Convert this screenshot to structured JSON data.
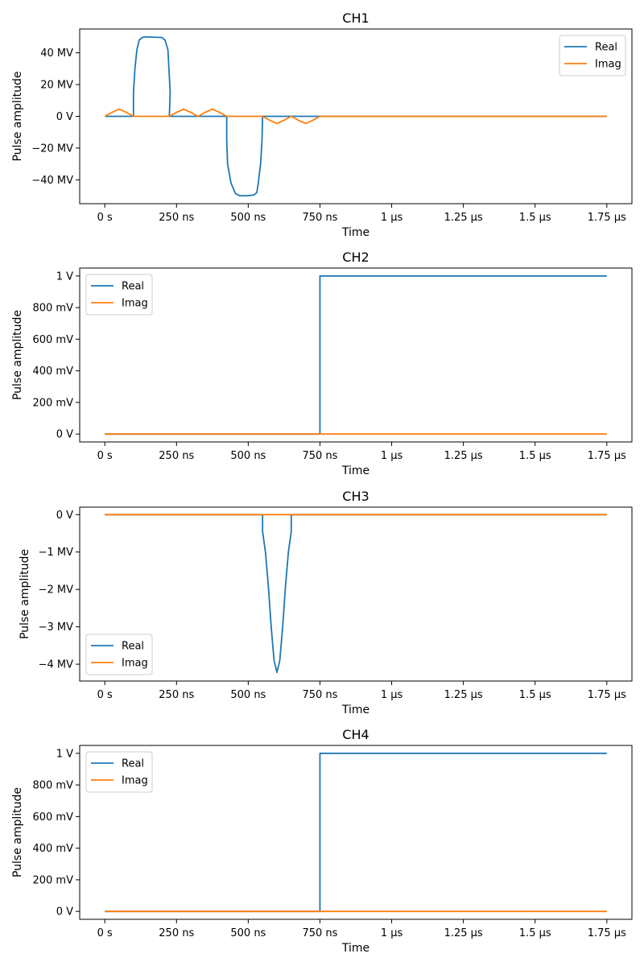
{
  "chart_data": [
    {
      "type": "line",
      "title": "CH1",
      "xlabel": "Time",
      "ylabel": "Pulse amplitude",
      "xlim": [
        -0.0875,
        1.8375
      ],
      "ylim": [
        -55,
        55
      ],
      "x_ticks": [
        0,
        0.25,
        0.5,
        0.75,
        1.0,
        1.25,
        1.5,
        1.75
      ],
      "x_tick_labels": [
        "0 s",
        "250 ns",
        "500 ns",
        "750 ns",
        "1 µs",
        "1.25 µs",
        "1.5 µs",
        "1.75 µs"
      ],
      "y_ticks": [
        -40,
        -20,
        0,
        20,
        40
      ],
      "y_tick_labels": [
        "−40 MV",
        "−20 MV",
        "0 V",
        "20 MV",
        "40 MV"
      ],
      "legend": {
        "position": "upper-right",
        "entries": [
          "Real",
          "Imag"
        ]
      },
      "grid": false,
      "series": [
        {
          "name": "Real",
          "color": "#1f77b4",
          "x": [
            0,
            0.1,
            0.1,
            0.105,
            0.112,
            0.12,
            0.13,
            0.14,
            0.15,
            0.2,
            0.21,
            0.22,
            0.228,
            0.225,
            0.225,
            0.42,
            0.425,
            0.425,
            0.428,
            0.44,
            0.455,
            0.47,
            0.5,
            0.52,
            0.53,
            0.535,
            0.543,
            0.548,
            0.55,
            0.55,
            0.75,
            1.75
          ],
          "y": [
            0,
            0,
            15,
            30,
            42,
            48,
            49.6,
            50,
            50,
            49.6,
            48,
            42,
            15,
            0,
            0,
            0,
            0,
            -15,
            -30,
            -42,
            -48.5,
            -50,
            -50,
            -49.5,
            -48,
            -42,
            -30,
            -15,
            0,
            0,
            0,
            0
          ]
        },
        {
          "name": "Imag",
          "color": "#ff7f0e",
          "x": [
            0,
            0.025,
            0.05,
            0.075,
            0.1,
            0.225,
            0.25,
            0.275,
            0.3,
            0.325,
            0.35,
            0.375,
            0.4,
            0.425,
            0.55,
            0.575,
            0.6,
            0.625,
            0.65,
            0.675,
            0.7,
            0.725,
            0.75,
            1.75
          ],
          "y": [
            0,
            2.5,
            4.5,
            2.5,
            0,
            0,
            2.5,
            4.5,
            2.5,
            0,
            2.5,
            4.5,
            2.5,
            0,
            0,
            -2.5,
            -4.5,
            -2.5,
            0,
            -2.5,
            -4.5,
            -2.5,
            0,
            0
          ]
        }
      ]
    },
    {
      "type": "line",
      "title": "CH2",
      "xlabel": "Time",
      "ylabel": "Pulse amplitude",
      "xlim": [
        -0.0875,
        1.8375
      ],
      "ylim": [
        -0.05,
        1.05
      ],
      "x_ticks": [
        0,
        0.25,
        0.5,
        0.75,
        1.0,
        1.25,
        1.5,
        1.75
      ],
      "x_tick_labels": [
        "0 s",
        "250 ns",
        "500 ns",
        "750 ns",
        "1 µs",
        "1.25 µs",
        "1.5 µs",
        "1.75 µs"
      ],
      "y_ticks": [
        0,
        0.2,
        0.4,
        0.6,
        0.8,
        1.0
      ],
      "y_tick_labels": [
        "0 V",
        "200 mV",
        "400 mV",
        "600 mV",
        "800 mV",
        "1 V"
      ],
      "legend": {
        "position": "upper-left",
        "entries": [
          "Real",
          "Imag"
        ]
      },
      "grid": false,
      "series": [
        {
          "name": "Real",
          "color": "#1f77b4",
          "x": [
            0,
            0.75,
            0.75,
            1.75
          ],
          "y": [
            0,
            0,
            1,
            1
          ]
        },
        {
          "name": "Imag",
          "color": "#ff7f0e",
          "x": [
            0,
            1.75
          ],
          "y": [
            0,
            0
          ]
        }
      ]
    },
    {
      "type": "line",
      "title": "CH3",
      "xlabel": "Time",
      "ylabel": "Pulse amplitude",
      "xlim": [
        -0.0875,
        1.8375
      ],
      "ylim": [
        -4.45,
        0.2
      ],
      "x_ticks": [
        0,
        0.25,
        0.5,
        0.75,
        1.0,
        1.25,
        1.5,
        1.75
      ],
      "x_tick_labels": [
        "0 s",
        "250 ns",
        "500 ns",
        "750 ns",
        "1 µs",
        "1.25 µs",
        "1.5 µs",
        "1.75 µs"
      ],
      "y_ticks": [
        -4,
        -3,
        -2,
        -1,
        0
      ],
      "y_tick_labels": [
        "−4 MV",
        "−3 MV",
        "−2 MV",
        "−1 MV",
        "0 V"
      ],
      "legend": {
        "position": "lower-left",
        "entries": [
          "Real",
          "Imag"
        ]
      },
      "grid": false,
      "series": [
        {
          "name": "Real",
          "color": "#1f77b4",
          "x": [
            0,
            0.55,
            0.55,
            0.56,
            0.57,
            0.58,
            0.59,
            0.6,
            0.61,
            0.62,
            0.63,
            0.64,
            0.65,
            0.65,
            1.75
          ],
          "y": [
            0,
            0,
            -0.45,
            -1.0,
            -1.9,
            -3.0,
            -3.9,
            -4.22,
            -3.9,
            -3.0,
            -1.9,
            -1.0,
            -0.45,
            0,
            0
          ]
        },
        {
          "name": "Imag",
          "color": "#ff7f0e",
          "x": [
            0,
            1.75
          ],
          "y": [
            0,
            0
          ]
        }
      ]
    },
    {
      "type": "line",
      "title": "CH4",
      "xlabel": "Time",
      "ylabel": "Pulse amplitude",
      "xlim": [
        -0.0875,
        1.8375
      ],
      "ylim": [
        -0.05,
        1.05
      ],
      "x_ticks": [
        0,
        0.25,
        0.5,
        0.75,
        1.0,
        1.25,
        1.5,
        1.75
      ],
      "x_tick_labels": [
        "0 s",
        "250 ns",
        "500 ns",
        "750 ns",
        "1 µs",
        "1.25 µs",
        "1.5 µs",
        "1.75 µs"
      ],
      "y_ticks": [
        0,
        0.2,
        0.4,
        0.6,
        0.8,
        1.0
      ],
      "y_tick_labels": [
        "0 V",
        "200 mV",
        "400 mV",
        "600 mV",
        "800 mV",
        "1 V"
      ],
      "legend": {
        "position": "upper-left",
        "entries": [
          "Real",
          "Imag"
        ]
      },
      "grid": false,
      "series": [
        {
          "name": "Real",
          "color": "#1f77b4",
          "x": [
            0,
            0.75,
            0.75,
            1.75
          ],
          "y": [
            0,
            0,
            1,
            1
          ]
        },
        {
          "name": "Imag",
          "color": "#ff7f0e",
          "x": [
            0,
            1.75
          ],
          "y": [
            0,
            0
          ]
        }
      ]
    }
  ]
}
